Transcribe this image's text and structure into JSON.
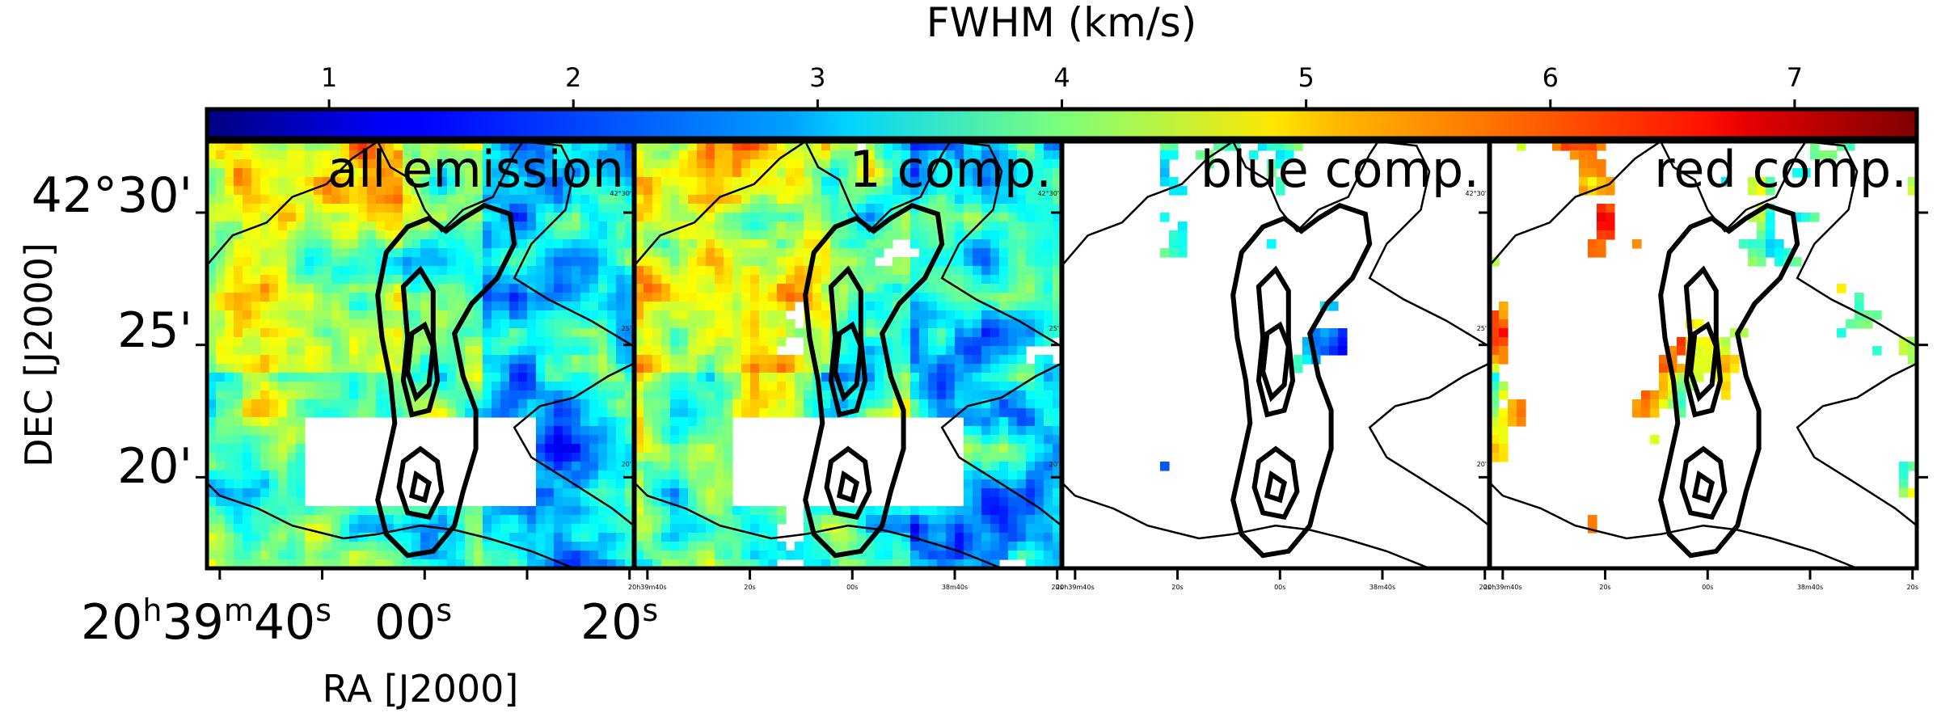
{
  "chart_data": {
    "type": "heatmap",
    "colorbar": {
      "label": "FWHM (km/s)",
      "ticks": [
        1,
        2,
        3,
        4,
        5,
        6,
        7
      ],
      "range": [
        0.5,
        7.5
      ],
      "colormap": "jet",
      "placement": "top"
    },
    "panels": [
      {
        "title": "all emission",
        "coverage": 0.93,
        "seed": 11,
        "bias": 0.0
      },
      {
        "title": "1 comp.",
        "coverage": 0.78,
        "seed": 23,
        "bias": 0.1
      },
      {
        "title": "blue comp.",
        "coverage": 0.22,
        "seed": 37,
        "bias": -0.6
      },
      {
        "title": "red comp.",
        "coverage": 0.26,
        "seed": 53,
        "bias": 0.6
      }
    ],
    "xaxis": {
      "label": "RA [J2000]",
      "ticks": [
        {
          "hms": "20",
          "h": "h",
          "ms": "39",
          "m": "m",
          "ss": "40",
          "s": "s"
        },
        {
          "text": "00",
          "s": "s"
        },
        {
          "text": "20",
          "s": "s"
        }
      ]
    },
    "yaxis": {
      "label": "DEC [J2000]",
      "ticks": [
        "42°30'",
        "25'",
        "20'"
      ],
      "range_arcmin": [
        16.5,
        32.2
      ]
    },
    "tiny_labels": {
      "ra": [
        "20h39m40s",
        "20s",
        "00s",
        "38m40s",
        "20s"
      ],
      "dec": [
        "42°30'",
        "25'",
        "20'"
      ]
    },
    "grid": false,
    "contours": "black intensity contours overlaid on every panel"
  }
}
